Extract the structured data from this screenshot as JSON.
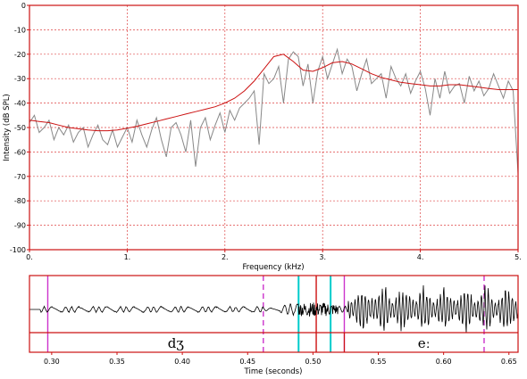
{
  "chart_data": [
    {
      "type": "line",
      "xlabel": "Frequency (kHz)",
      "ylabel": "Intensity (dB SPL)",
      "xlim": [
        0,
        5
      ],
      "ylim": [
        -100,
        0
      ],
      "x_ticks": [
        "0.",
        "1.",
        "2.",
        "3.",
        "4.",
        "5."
      ],
      "y_ticks": [
        "0",
        "-10",
        "-20",
        "-30",
        "-40",
        "-50",
        "-60",
        "-70",
        "-80",
        "-90",
        "-100"
      ],
      "grid": true,
      "series": [
        {
          "color": "#888888",
          "x": [
            0.0,
            0.05,
            0.1,
            0.15,
            0.2,
            0.25,
            0.3,
            0.35,
            0.4,
            0.45,
            0.5,
            0.55,
            0.6,
            0.65,
            0.7,
            0.75,
            0.8,
            0.85,
            0.9,
            0.95,
            1.0,
            1.05,
            1.1,
            1.15,
            1.2,
            1.25,
            1.3,
            1.35,
            1.4,
            1.45,
            1.5,
            1.55,
            1.6,
            1.65,
            1.7,
            1.75,
            1.8,
            1.85,
            1.9,
            1.95,
            2.0,
            2.05,
            2.1,
            2.15,
            2.2,
            2.25,
            2.3,
            2.35,
            2.4,
            2.45,
            2.5,
            2.55,
            2.6,
            2.65,
            2.7,
            2.75,
            2.8,
            2.85,
            2.9,
            2.95,
            3.0,
            3.05,
            3.1,
            3.15,
            3.2,
            3.25,
            3.3,
            3.35,
            3.4,
            3.45,
            3.5,
            3.55,
            3.6,
            3.65,
            3.7,
            3.75,
            3.8,
            3.85,
            3.9,
            3.95,
            4.0,
            4.05,
            4.1,
            4.15,
            4.2,
            4.25,
            4.3,
            4.35,
            4.4,
            4.45,
            4.5,
            4.55,
            4.6,
            4.65,
            4.7,
            4.75,
            4.8,
            4.85,
            4.9,
            4.95,
            5.0
          ],
          "y": [
            -48,
            -45,
            -52,
            -50,
            -47,
            -55,
            -50,
            -53,
            -49,
            -56,
            -52,
            -50,
            -58,
            -53,
            -49,
            -55,
            -57,
            -51,
            -58,
            -54,
            -50,
            -56,
            -47,
            -53,
            -58,
            -51,
            -46,
            -55,
            -62,
            -50,
            -48,
            -53,
            -60,
            -47,
            -66,
            -50,
            -46,
            -55,
            -49,
            -44,
            -52,
            -43,
            -47,
            -42,
            -40,
            -38,
            -35,
            -57,
            -28,
            -32,
            -30,
            -25,
            -40,
            -22,
            -19,
            -21,
            -33,
            -24,
            -40,
            -27,
            -21,
            -30,
            -24,
            -18,
            -28,
            -22,
            -25,
            -35,
            -28,
            -22,
            -32,
            -30,
            -28,
            -38,
            -25,
            -30,
            -33,
            -28,
            -36,
            -31,
            -27,
            -34,
            -45,
            -30,
            -38,
            -27,
            -36,
            -33,
            -32,
            -40,
            -29,
            -35,
            -31,
            -37,
            -34,
            -28,
            -33,
            -38,
            -31,
            -35,
            -69
          ]
        },
        {
          "color": "#cc1111",
          "x": [
            0.0,
            0.1,
            0.2,
            0.3,
            0.4,
            0.5,
            0.6,
            0.7,
            0.8,
            0.9,
            1.0,
            1.1,
            1.2,
            1.3,
            1.4,
            1.5,
            1.6,
            1.7,
            1.8,
            1.9,
            2.0,
            2.1,
            2.2,
            2.3,
            2.4,
            2.5,
            2.6,
            2.7,
            2.8,
            2.9,
            3.0,
            3.1,
            3.2,
            3.3,
            3.4,
            3.5,
            3.6,
            3.7,
            3.8,
            3.9,
            4.0,
            4.1,
            4.2,
            4.3,
            4.4,
            4.5,
            4.6,
            4.7,
            4.8,
            4.9,
            5.0
          ],
          "y": [
            -47,
            -47.5,
            -48,
            -49,
            -50,
            -50.5,
            -51,
            -51.3,
            -51.3,
            -51,
            -50.3,
            -49.5,
            -48.5,
            -47.5,
            -46.5,
            -45.5,
            -44.5,
            -43.5,
            -42.5,
            -41.5,
            -40,
            -38,
            -35,
            -31,
            -26,
            -21,
            -20,
            -23,
            -26.5,
            -27,
            -25.5,
            -23.5,
            -23,
            -24,
            -26,
            -28,
            -29.5,
            -30.5,
            -31.5,
            -32,
            -32.5,
            -33,
            -33,
            -32.5,
            -32.5,
            -33,
            -33.5,
            -34,
            -34.5,
            -34.5,
            -34.5
          ]
        }
      ]
    },
    {
      "type": "line",
      "xlabel": "Time (seconds)",
      "xlim": [
        0.283,
        0.657
      ],
      "x_ticks": [
        "0.30",
        "0.35",
        "0.40",
        "0.45",
        "0.50",
        "0.55",
        "0.60",
        "0.65"
      ],
      "segment_labels": [
        {
          "text": "dʒ",
          "t": 0.395
        },
        {
          "text": "eː",
          "t": 0.585
        }
      ],
      "markers": [
        {
          "t": 0.297,
          "color": "#cc33cc",
          "style": "solid"
        },
        {
          "t": 0.462,
          "color": "#cc33cc",
          "style": "dashed"
        },
        {
          "t": 0.489,
          "color": "#00cccc",
          "style": "solid"
        },
        {
          "t": 0.5025,
          "color": "#cc1111",
          "style": "solid"
        },
        {
          "t": 0.5135,
          "color": "#00cccc",
          "style": "solid"
        },
        {
          "t": 0.524,
          "color": "#cc33cc",
          "style": "solid"
        },
        {
          "t": 0.631,
          "color": "#cc33cc",
          "style": "dashed"
        }
      ],
      "boundary_t": 0.524
    }
  ]
}
